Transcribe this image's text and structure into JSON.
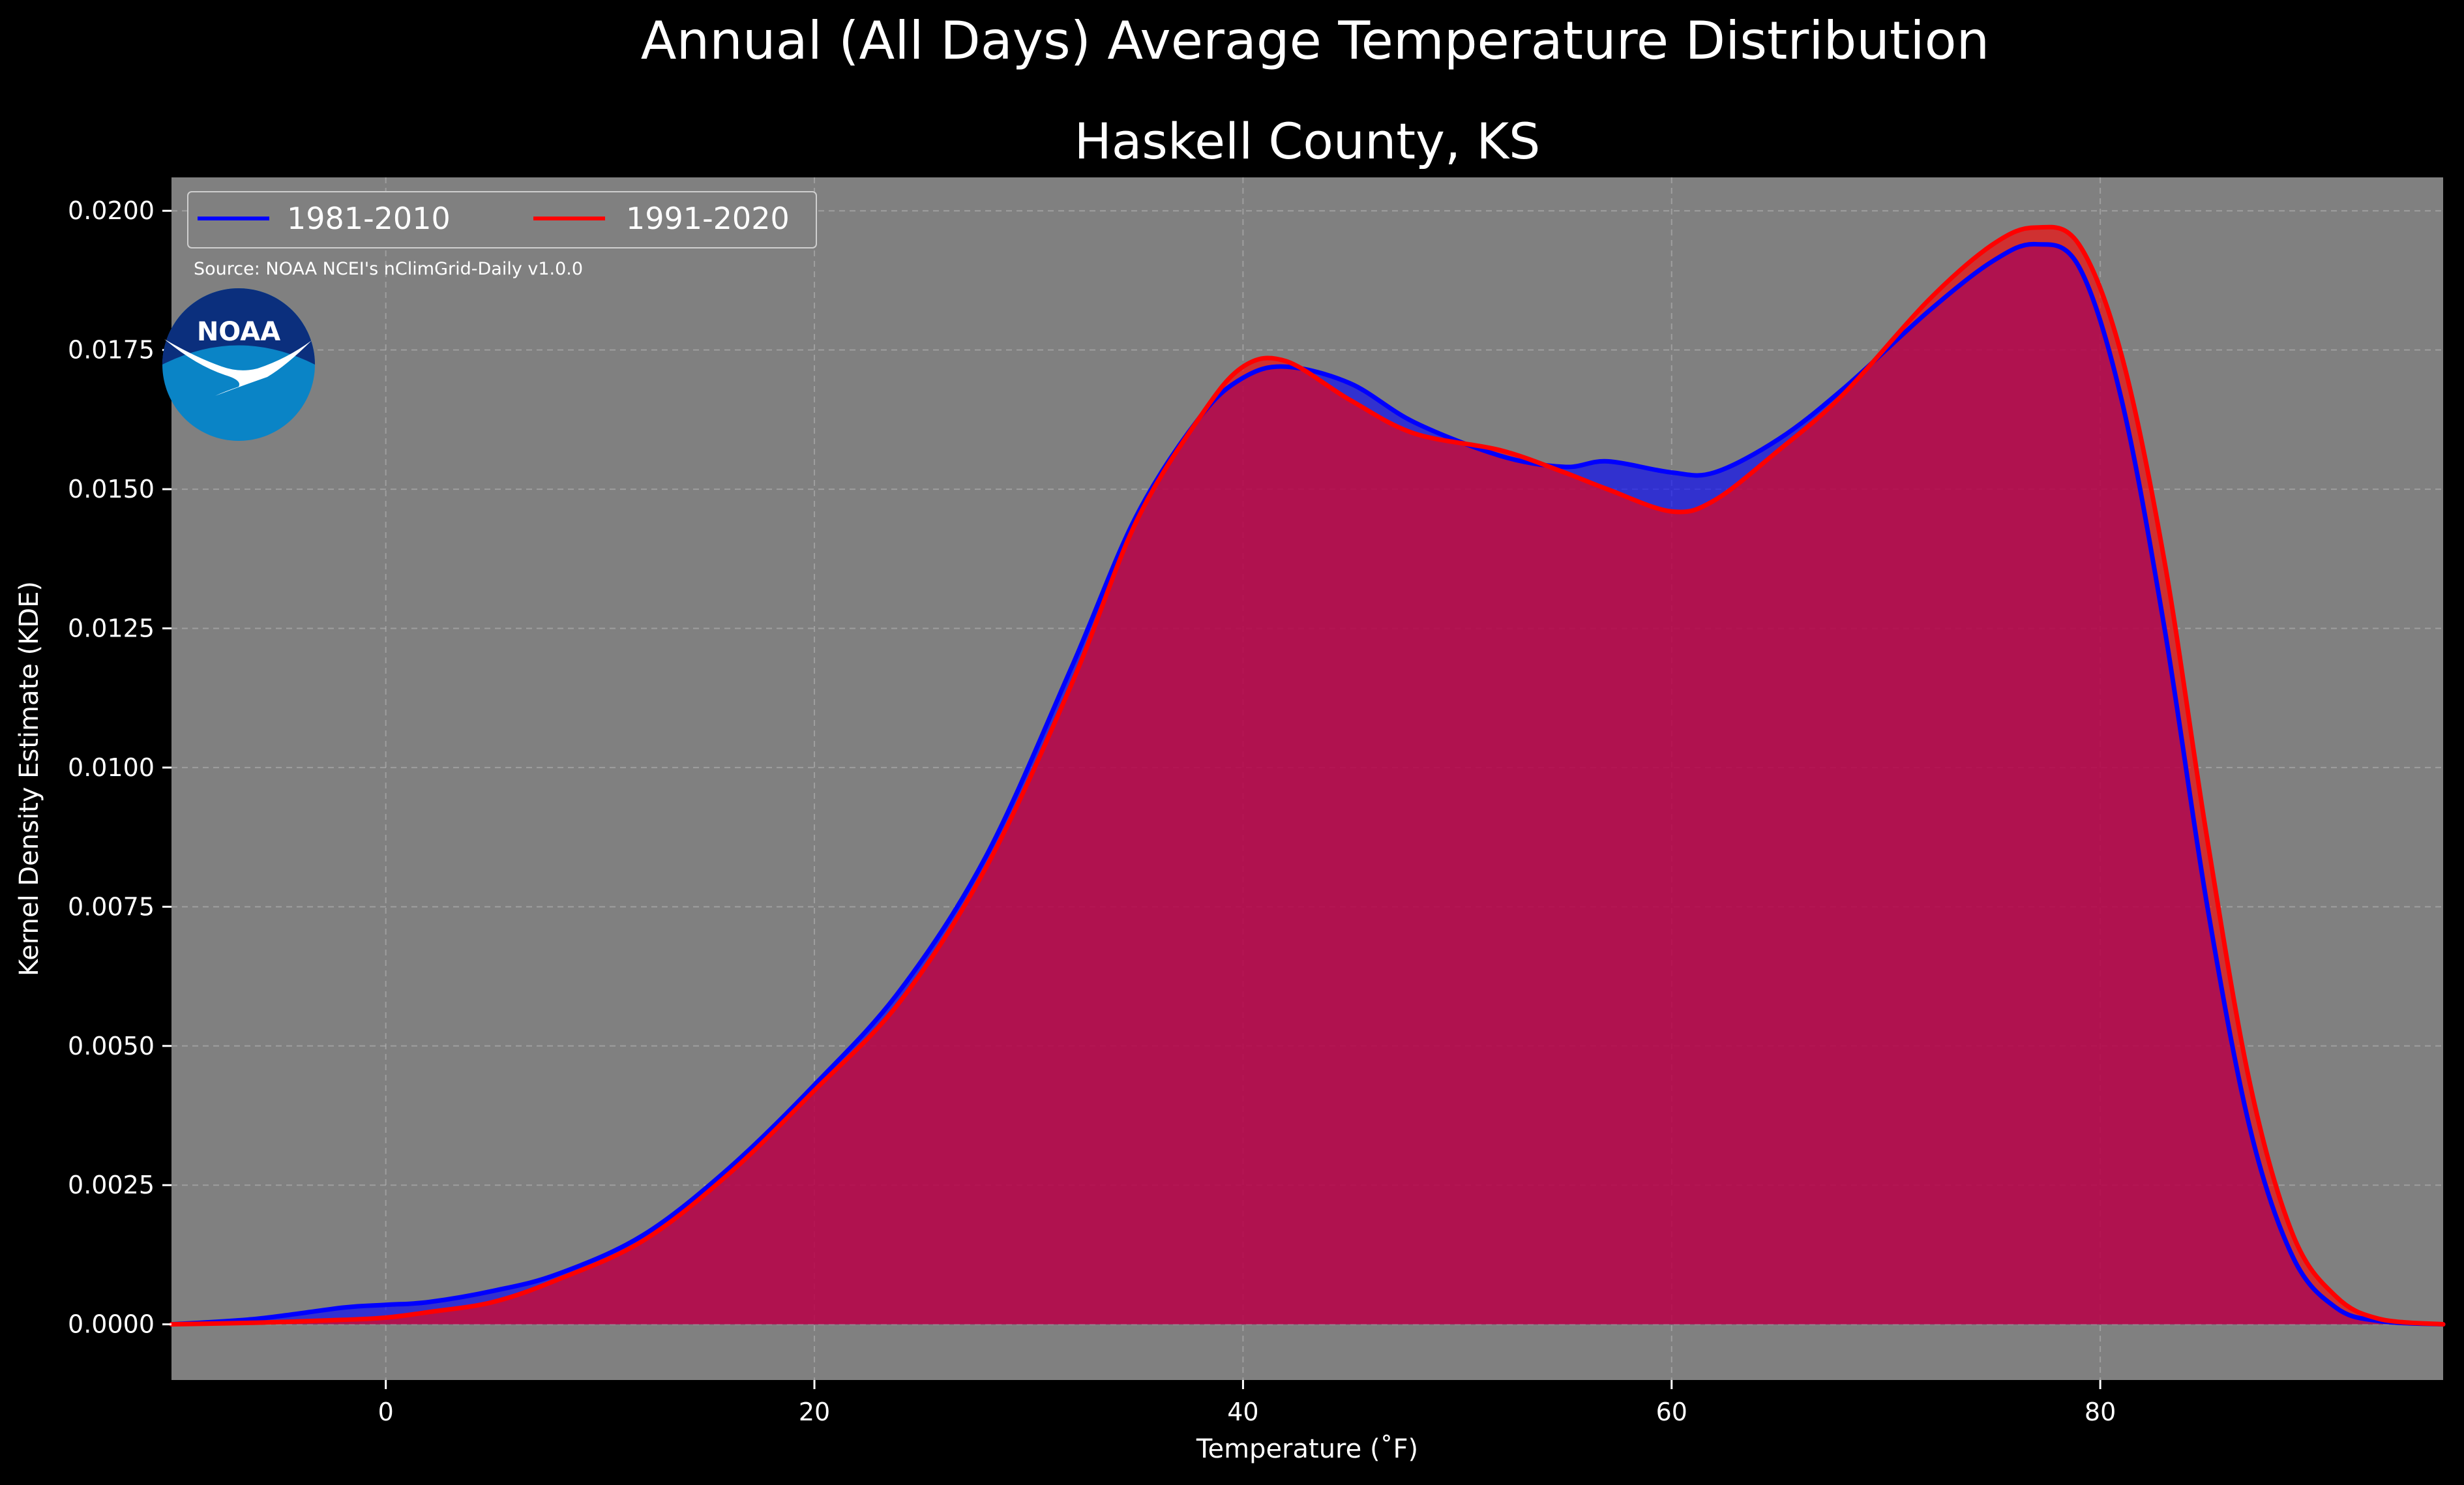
{
  "chart_data": {
    "type": "area",
    "title": "Annual (All Days) Average Temperature Distribution",
    "subtitle": "Haskell County, KS",
    "xlabel": "Temperature (˚F)",
    "ylabel": "Kernel Density Estimate (KDE)",
    "xlim": [
      -10,
      96
    ],
    "ylim": [
      -0.001,
      0.0206
    ],
    "x_ticks": [
      0,
      20,
      40,
      60,
      80
    ],
    "x_tick_labels": [
      "0",
      "20",
      "40",
      "60",
      "80"
    ],
    "y_ticks": [
      0.0,
      0.0025,
      0.005,
      0.0075,
      0.01,
      0.0125,
      0.015,
      0.0175,
      0.02
    ],
    "y_tick_labels": [
      "0.0000",
      "0.0025",
      "0.0050",
      "0.0075",
      "0.0100",
      "0.0125",
      "0.0150",
      "0.0175",
      "0.0200"
    ],
    "grid": true,
    "legend_position": "top-left",
    "background_color": "#808080",
    "series": [
      {
        "name": "1981-2010",
        "color": "#0000ff",
        "x": [
          -10,
          -6,
          -2,
          0,
          2,
          5,
          8,
          12,
          16,
          20,
          24,
          28,
          32,
          35,
          38,
          40,
          42,
          45,
          48,
          52,
          55,
          57,
          60,
          62,
          65,
          68,
          72,
          75,
          77,
          79,
          81,
          83,
          85,
          87,
          89,
          91,
          93,
          96
        ],
        "values": [
          0.0,
          0.0001,
          0.0003,
          0.00035,
          0.0004,
          0.0006,
          0.0009,
          0.0016,
          0.0028,
          0.0043,
          0.006,
          0.0084,
          0.0118,
          0.0145,
          0.0163,
          0.017,
          0.0172,
          0.0169,
          0.0162,
          0.0156,
          0.0154,
          0.0155,
          0.0153,
          0.0153,
          0.0159,
          0.0168,
          0.0182,
          0.0191,
          0.0194,
          0.019,
          0.0166,
          0.0125,
          0.0075,
          0.0035,
          0.0012,
          0.0003,
          6e-05,
          0.0
        ]
      },
      {
        "name": "1991-2020",
        "color": "#ff0000",
        "x": [
          -10,
          -6,
          -2,
          0,
          2,
          5,
          8,
          12,
          16,
          20,
          24,
          28,
          32,
          35,
          38,
          40,
          42,
          45,
          48,
          52,
          55,
          57,
          60,
          62,
          65,
          68,
          72,
          75,
          77,
          79,
          81,
          83,
          85,
          87,
          89,
          91,
          93,
          96
        ],
        "values": [
          0.0,
          3e-05,
          8e-05,
          0.00012,
          0.00022,
          0.0004,
          0.0008,
          0.0015,
          0.0027,
          0.0042,
          0.0058,
          0.0082,
          0.0115,
          0.0144,
          0.0163,
          0.0172,
          0.0173,
          0.0166,
          0.016,
          0.0157,
          0.0153,
          0.015,
          0.0146,
          0.0148,
          0.0157,
          0.0167,
          0.0184,
          0.0194,
          0.0197,
          0.0194,
          0.0174,
          0.0137,
          0.0087,
          0.0043,
          0.0016,
          0.0005,
          0.0001,
          0.0
        ]
      }
    ],
    "annotation": "Source: NOAA NCEI's nClimGrid-Daily v1.0.0"
  },
  "logo": {
    "text": "NOAA",
    "outer_color": "#0a84c6",
    "inner_color": "#0b2f7d"
  }
}
